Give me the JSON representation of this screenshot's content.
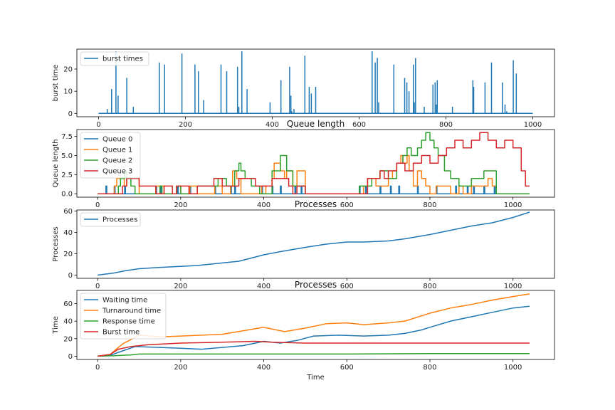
{
  "chart_data": [
    {
      "type": "line",
      "title": "",
      "xlabel": "",
      "ylabel": "burst time",
      "xlim": [
        -50,
        1050
      ],
      "ylim": [
        -1.5,
        29
      ],
      "xticks": [
        0,
        200,
        400,
        600,
        800,
        1000
      ],
      "yticks": [
        0,
        10,
        20
      ],
      "legend": "top-left",
      "series": [
        {
          "name": "burst times",
          "color": "#1f77b4",
          "style": "spikes",
          "x": [
            20,
            30,
            40,
            45,
            65,
            80,
            140,
            152,
            192,
            222,
            230,
            242,
            282,
            295,
            320,
            323,
            330,
            342,
            395,
            420,
            440,
            443,
            445,
            450,
            475,
            485,
            490,
            500,
            630,
            637,
            642,
            645,
            680,
            705,
            710,
            715,
            725,
            727,
            730,
            750,
            770,
            775,
            778,
            780,
            815,
            862,
            864,
            890,
            905,
            930,
            936,
            940,
            955,
            962
          ],
          "values": [
            2,
            11,
            28,
            8,
            16,
            3,
            23,
            22,
            27,
            22,
            19,
            6,
            22,
            19,
            21,
            3,
            28,
            11,
            5,
            15,
            21,
            8,
            1,
            2,
            26,
            12,
            9,
            12,
            28,
            23,
            25,
            5,
            22,
            16,
            14,
            10,
            22,
            5,
            25,
            3,
            13,
            14,
            4,
            15,
            3,
            15,
            12,
            14,
            23,
            14,
            4,
            1,
            24,
            18
          ]
        }
      ]
    },
    {
      "type": "line",
      "title": "Queue length",
      "xlabel": "",
      "ylabel": "Queue length",
      "xlim": [
        -50,
        1100
      ],
      "ylim": [
        -0.45,
        8.4
      ],
      "xticks": [
        0,
        200,
        400,
        600,
        800,
        1000
      ],
      "yticks": [
        0.0,
        2.5,
        5.0,
        7.5
      ],
      "legend": "top-left",
      "series": [
        {
          "name": "Queue 0",
          "color": "#1f77b4",
          "style": "step",
          "x": [
            0,
            20,
            22,
            40,
            42,
            65,
            67,
            140,
            142,
            152,
            154,
            192,
            194,
            222,
            224,
            282,
            284,
            320,
            322,
            330,
            332,
            395,
            397,
            420,
            422,
            440,
            442,
            475,
            477,
            490,
            492,
            630,
            632,
            645,
            647,
            680,
            682,
            705,
            707,
            725,
            727,
            770,
            772,
            815,
            817,
            862,
            864,
            890,
            892,
            905,
            907,
            930,
            932,
            955,
            957,
            1040
          ],
          "values": [
            0,
            1,
            0,
            1,
            0,
            1,
            0,
            1,
            0,
            1,
            0,
            1,
            0,
            1,
            0,
            1,
            0,
            1,
            0,
            1,
            0,
            1,
            0,
            1,
            0,
            1,
            0,
            1,
            0,
            1,
            0,
            1,
            0,
            1,
            0,
            1,
            0,
            1,
            0,
            1,
            0,
            1,
            0,
            1,
            0,
            1,
            0,
            1,
            0,
            1,
            0,
            1,
            0,
            1,
            0,
            0
          ]
        },
        {
          "name": "Queue 1",
          "color": "#ff7f0e",
          "style": "step",
          "x": [
            0,
            40,
            46,
            64,
            70,
            100,
            140,
            160,
            190,
            200,
            222,
            240,
            282,
            300,
            320,
            325,
            335,
            345,
            395,
            405,
            420,
            425,
            440,
            450,
            455,
            470,
            480,
            500,
            640,
            650,
            670,
            700,
            710,
            720,
            730,
            735,
            745,
            750,
            760,
            770,
            780,
            790,
            800,
            815,
            850,
            870,
            880,
            900,
            940,
            950,
            960,
            1000,
            1040
          ],
          "values": [
            0,
            1,
            2,
            1,
            2,
            0,
            1,
            0,
            1,
            0,
            1,
            0,
            1,
            0,
            1,
            3,
            2,
            0,
            1,
            0,
            2,
            4,
            3,
            2,
            3,
            1,
            3,
            0,
            1,
            2,
            1,
            2,
            3,
            4,
            5,
            4,
            5,
            3,
            1,
            3,
            2,
            1,
            0,
            1,
            0,
            1,
            0,
            1,
            2,
            1,
            0,
            0,
            0
          ]
        },
        {
          "name": "Queue 2",
          "color": "#2ca02c",
          "style": "step",
          "x": [
            0,
            50,
            55,
            65,
            70,
            80,
            90,
            150,
            155,
            190,
            200,
            240,
            290,
            310,
            330,
            340,
            345,
            355,
            370,
            390,
            420,
            440,
            455,
            470,
            500,
            630,
            660,
            680,
            700,
            720,
            735,
            745,
            755,
            770,
            780,
            790,
            800,
            810,
            820,
            835,
            850,
            870,
            900,
            930,
            960,
            1040
          ],
          "values": [
            0,
            1,
            2,
            3,
            2,
            1,
            0,
            1,
            0,
            1,
            0,
            1,
            2,
            1,
            3,
            4,
            3,
            2,
            1,
            0,
            3,
            5,
            3,
            1,
            0,
            1,
            2,
            3,
            2,
            4,
            5,
            6,
            5,
            6,
            7,
            8,
            7,
            6,
            5,
            3,
            2,
            1,
            2,
            3,
            0,
            0
          ]
        },
        {
          "name": "Queue 3",
          "color": "#d62728",
          "style": "step",
          "x": [
            0,
            60,
            70,
            100,
            140,
            160,
            180,
            190,
            220,
            240,
            280,
            300,
            340,
            380,
            420,
            460,
            470,
            480,
            500,
            520,
            560,
            580,
            600,
            630,
            650,
            670,
            680,
            690,
            700,
            720,
            740,
            760,
            780,
            800,
            820,
            840,
            860,
            880,
            900,
            920,
            940,
            960,
            980,
            1000,
            1020,
            1030,
            1040
          ],
          "values": [
            0,
            1,
            2,
            1,
            0,
            1,
            0,
            1,
            0,
            1,
            2,
            1,
            2,
            1,
            2,
            1,
            0,
            1,
            0,
            0,
            0,
            0,
            0,
            0,
            2,
            2,
            3,
            2,
            3,
            4,
            3,
            4,
            5,
            4,
            5,
            6,
            7,
            6,
            7,
            8,
            7,
            6,
            7,
            6,
            3,
            1,
            1
          ]
        }
      ]
    },
    {
      "type": "line",
      "title": "Processes",
      "xlabel": "",
      "ylabel": "Processes",
      "xlim": [
        -50,
        1100
      ],
      "ylim": [
        -3,
        61
      ],
      "xticks": [
        0,
        200,
        400,
        600,
        800,
        1000
      ],
      "yticks": [
        0,
        20,
        40,
        60
      ],
      "legend": "top-left",
      "series": [
        {
          "name": "Processes",
          "color": "#1f77b4",
          "style": "line",
          "x": [
            0,
            20,
            40,
            65,
            100,
            140,
            190,
            240,
            290,
            340,
            400,
            440,
            500,
            550,
            600,
            640,
            700,
            740,
            800,
            850,
            900,
            950,
            1000,
            1040
          ],
          "values": [
            0,
            1,
            2,
            4,
            6,
            7,
            8,
            9,
            11,
            13,
            19,
            22,
            26,
            29,
            31,
            31,
            32,
            34,
            38,
            42,
            46,
            49,
            54,
            59
          ]
        }
      ]
    },
    {
      "type": "line",
      "title": "Processes",
      "xlabel": "Time",
      "ylabel": "Time",
      "xlim": [
        -50,
        1100
      ],
      "ylim": [
        -3.7,
        75
      ],
      "xticks": [
        0,
        200,
        400,
        600,
        800,
        1000
      ],
      "yticks": [
        0,
        20,
        40,
        60
      ],
      "legend": "top-left",
      "series": [
        {
          "name": "Waiting time",
          "color": "#1f77b4",
          "style": "line",
          "x": [
            0,
            30,
            60,
            90,
            150,
            200,
            250,
            300,
            350,
            400,
            440,
            480,
            520,
            580,
            640,
            700,
            740,
            780,
            800,
            850,
            900,
            950,
            1000,
            1040
          ],
          "values": [
            0,
            1,
            6,
            11,
            10,
            9,
            8,
            10,
            12,
            17,
            15,
            18,
            23,
            24,
            23,
            24,
            26,
            30,
            33,
            40,
            45,
            50,
            55,
            57
          ]
        },
        {
          "name": "Turnaround time",
          "color": "#ff7f0e",
          "style": "line",
          "x": [
            0,
            30,
            60,
            100,
            150,
            200,
            250,
            300,
            350,
            400,
            450,
            500,
            550,
            600,
            640,
            700,
            740,
            780,
            800,
            850,
            900,
            950,
            1000,
            1040
          ],
          "values": [
            0,
            2,
            14,
            24,
            22,
            23,
            24,
            25,
            29,
            33,
            28,
            32,
            37,
            38,
            36,
            38,
            40,
            46,
            49,
            55,
            59,
            64,
            68,
            71
          ]
        },
        {
          "name": "Response time",
          "color": "#2ca02c",
          "style": "line",
          "x": [
            0,
            40,
            80,
            100,
            200,
            400,
            600,
            800,
            1040
          ],
          "values": [
            0,
            0.5,
            1.5,
            2.5,
            2.5,
            2.5,
            2.5,
            3,
            3
          ]
        },
        {
          "name": "Burst time",
          "color": "#d62728",
          "style": "line",
          "x": [
            0,
            30,
            50,
            80,
            120,
            200,
            300,
            380,
            420,
            500,
            600,
            700,
            800,
            900,
            1040
          ],
          "values": [
            0,
            2,
            8,
            11,
            13,
            15,
            16,
            17,
            16,
            15,
            15,
            15,
            15,
            15,
            15
          ]
        }
      ]
    }
  ]
}
